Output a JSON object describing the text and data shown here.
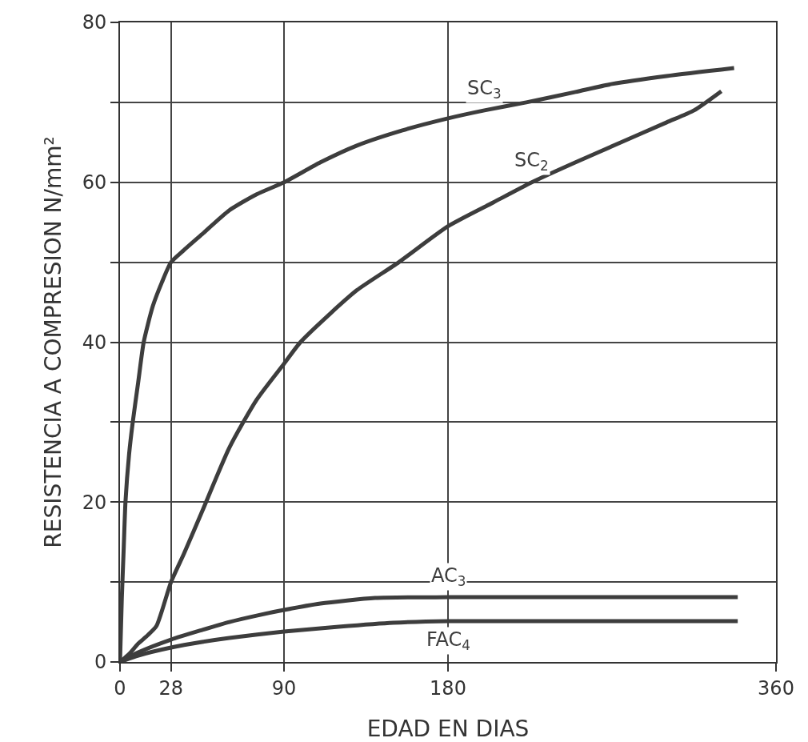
{
  "chart_data": {
    "type": "line",
    "xlabel": "EDAD EN DIAS",
    "ylabel": "RESISTENCIA A COMPRESION N/mm²",
    "xlim": [
      0,
      360
    ],
    "ylim": [
      0,
      80
    ],
    "xticks": [
      0,
      28,
      90,
      180,
      360
    ],
    "yticks": [
      0,
      {
        "value": 10,
        "label": null
      },
      20,
      {
        "value": 30,
        "label": null
      },
      40,
      {
        "value": 50,
        "label": null
      },
      60,
      {
        "value": 70,
        "label": null
      },
      80
    ],
    "grid": true,
    "legend": false,
    "marker": "none",
    "line_style": "solid",
    "series": [
      {
        "name": "SC$_{3}$",
        "color": "#3d3d3d",
        "x": [
          0,
          1,
          2,
          3,
          5,
          7,
          10,
          13,
          18,
          23,
          28,
          35,
          45,
          60,
          75,
          90,
          110,
          130,
          155,
          180,
          200,
          223,
          250,
          270,
          300,
          337
        ],
        "values": [
          0,
          8,
          14,
          20,
          26,
          30,
          35,
          40,
          44.5,
          47.5,
          50,
          51.5,
          53.5,
          56.5,
          58.5,
          60,
          62.5,
          64.6,
          66.5,
          68,
          69,
          70,
          71.3,
          72.3,
          73.3,
          74.3
        ]
      },
      {
        "name": "SC$_{2}$",
        "color": "#3d3d3d",
        "x": [
          0,
          5,
          10,
          15,
          20,
          28,
          35,
          45,
          60,
          75,
          90,
          99,
          115,
          130,
          153,
          180,
          205,
          226,
          250,
          275,
          300,
          315,
          330
        ],
        "values": [
          0,
          1,
          2.3,
          3.3,
          4.5,
          10,
          13.5,
          18.8,
          26.8,
          32.8,
          37.3,
          40,
          43.5,
          46.5,
          50,
          54.5,
          57.5,
          60,
          62.5,
          65,
          67.5,
          69,
          71.4
        ]
      },
      {
        "name": "AC$_{3}$",
        "color": "#3d3d3d",
        "x": [
          0,
          10,
          28,
          45,
          60,
          75,
          90,
          110,
          140,
          180,
          250,
          339
        ],
        "values": [
          0,
          1.2,
          2.8,
          4,
          5,
          5.8,
          6.5,
          7.3,
          8,
          8.1,
          8.1,
          8.1
        ]
      },
      {
        "name": "FAC$_{4}$",
        "color": "#3d3d3d",
        "x": [
          0,
          10,
          28,
          45,
          60,
          90,
          120,
          150,
          180,
          250,
          339
        ],
        "values": [
          0,
          0.8,
          1.8,
          2.5,
          3,
          3.8,
          4.4,
          4.9,
          5.1,
          5.1,
          5.1
        ]
      }
    ]
  }
}
